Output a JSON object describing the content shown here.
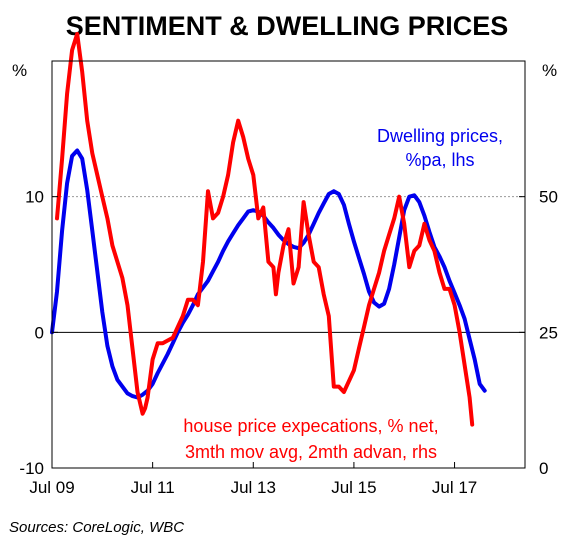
{
  "chart_data": {
    "type": "line",
    "title": "SENTIMENT & DWELLING PRICES",
    "source": "Sources: CoreLogic, WBC",
    "left_axis": {
      "unit": "%",
      "ylim": [
        -10,
        20
      ],
      "ticks": [
        "-10",
        "0",
        "10"
      ]
    },
    "right_axis": {
      "unit": "%",
      "ylim": [
        0,
        75
      ],
      "ticks": [
        "0",
        "25",
        "50"
      ]
    },
    "x_axis": {
      "range": [
        2009.5,
        2018.9
      ],
      "ticks": [
        {
          "x": 2009.5,
          "label": "Jul 09"
        },
        {
          "x": 2011.5,
          "label": "Jul 11"
        },
        {
          "x": 2013.5,
          "label": "Jul 13"
        },
        {
          "x": 2015.5,
          "label": "Jul 15"
        },
        {
          "x": 2017.5,
          "label": "Jul 17"
        }
      ]
    },
    "grid": {
      "dotted_at_left": [
        10
      ],
      "solid_at_left": [
        0
      ]
    },
    "series": [
      {
        "name": "Dwelling prices, %pa, lhs",
        "label_lines": [
          "Dwelling prices,",
          "%pa, lhs"
        ],
        "axis": "left",
        "color": "#0000ee",
        "points": [
          [
            2009.5,
            0
          ],
          [
            2009.6,
            3
          ],
          [
            2009.7,
            7.5
          ],
          [
            2009.8,
            11
          ],
          [
            2009.9,
            13
          ],
          [
            2010.0,
            13.4
          ],
          [
            2010.1,
            12.8
          ],
          [
            2010.2,
            10.5
          ],
          [
            2010.3,
            7.5
          ],
          [
            2010.4,
            4.5
          ],
          [
            2010.5,
            1.5
          ],
          [
            2010.6,
            -1
          ],
          [
            2010.7,
            -2.5
          ],
          [
            2010.8,
            -3.5
          ],
          [
            2010.9,
            -4
          ],
          [
            2011.0,
            -4.5
          ],
          [
            2011.1,
            -4.7
          ],
          [
            2011.2,
            -4.8
          ],
          [
            2011.3,
            -4.6
          ],
          [
            2011.4,
            -4.3
          ],
          [
            2011.5,
            -3.8
          ],
          [
            2011.6,
            -3
          ],
          [
            2011.7,
            -2.3
          ],
          [
            2011.8,
            -1.6
          ],
          [
            2011.9,
            -0.8
          ],
          [
            2012.0,
            0
          ],
          [
            2012.1,
            0.7
          ],
          [
            2012.2,
            1.3
          ],
          [
            2012.3,
            2
          ],
          [
            2012.4,
            2.8
          ],
          [
            2012.5,
            3.3
          ],
          [
            2012.6,
            3.8
          ],
          [
            2012.7,
            4.5
          ],
          [
            2012.8,
            5.2
          ],
          [
            2012.9,
            6
          ],
          [
            2013.0,
            6.7
          ],
          [
            2013.1,
            7.3
          ],
          [
            2013.2,
            7.9
          ],
          [
            2013.3,
            8.4
          ],
          [
            2013.4,
            8.9
          ],
          [
            2013.5,
            9
          ],
          [
            2013.6,
            8.9
          ],
          [
            2013.7,
            8.6
          ],
          [
            2013.8,
            8.1
          ],
          [
            2013.9,
            7.7
          ],
          [
            2014.0,
            7.2
          ],
          [
            2014.1,
            6.8
          ],
          [
            2014.2,
            6.5
          ],
          [
            2014.3,
            6.3
          ],
          [
            2014.4,
            6.2
          ],
          [
            2014.5,
            6.6
          ],
          [
            2014.6,
            7.2
          ],
          [
            2014.7,
            8
          ],
          [
            2014.8,
            8.8
          ],
          [
            2014.9,
            9.5
          ],
          [
            2015.0,
            10.2
          ],
          [
            2015.1,
            10.4
          ],
          [
            2015.2,
            10.2
          ],
          [
            2015.3,
            9.4
          ],
          [
            2015.4,
            8
          ],
          [
            2015.5,
            6.7
          ],
          [
            2015.6,
            5.5
          ],
          [
            2015.7,
            4.3
          ],
          [
            2015.8,
            3
          ],
          [
            2015.9,
            2.2
          ],
          [
            2016.0,
            1.9
          ],
          [
            2016.1,
            2.1
          ],
          [
            2016.2,
            3.2
          ],
          [
            2016.3,
            5
          ],
          [
            2016.4,
            7
          ],
          [
            2016.5,
            9
          ],
          [
            2016.6,
            10
          ],
          [
            2016.7,
            10.1
          ],
          [
            2016.8,
            9.6
          ],
          [
            2016.9,
            8.6
          ],
          [
            2017.0,
            7.4
          ],
          [
            2017.1,
            6.3
          ],
          [
            2017.2,
            5.6
          ],
          [
            2017.3,
            4.8
          ],
          [
            2017.4,
            3.8
          ],
          [
            2017.5,
            2.9
          ],
          [
            2017.6,
            2
          ],
          [
            2017.7,
            1
          ],
          [
            2017.8,
            -0.5
          ],
          [
            2017.9,
            -2
          ],
          [
            2018.0,
            -3.8
          ],
          [
            2018.1,
            -4.3
          ]
        ]
      },
      {
        "name": "house price expecations, % net, 3mth mov avg, 2mth advan, rhs",
        "label_lines": [
          "house price expecations, % net,",
          "3mth mov avg, 2mth advan, rhs"
        ],
        "axis": "right",
        "color": "#ff0000",
        "points": [
          [
            2009.6,
            46
          ],
          [
            2009.7,
            57
          ],
          [
            2009.8,
            69
          ],
          [
            2009.9,
            77
          ],
          [
            2010.0,
            80
          ],
          [
            2010.1,
            73
          ],
          [
            2010.2,
            64
          ],
          [
            2010.3,
            58
          ],
          [
            2010.4,
            54
          ],
          [
            2010.5,
            50
          ],
          [
            2010.6,
            46
          ],
          [
            2010.7,
            41
          ],
          [
            2010.8,
            38
          ],
          [
            2010.9,
            35
          ],
          [
            2011.0,
            30
          ],
          [
            2011.1,
            22
          ],
          [
            2011.2,
            14
          ],
          [
            2011.3,
            10
          ],
          [
            2011.35,
            11
          ],
          [
            2011.4,
            13
          ],
          [
            2011.5,
            20
          ],
          [
            2011.6,
            23
          ],
          [
            2011.7,
            23
          ],
          [
            2011.8,
            23.5
          ],
          [
            2011.9,
            24
          ],
          [
            2012.0,
            26
          ],
          [
            2012.1,
            28
          ],
          [
            2012.2,
            31
          ],
          [
            2012.3,
            31
          ],
          [
            2012.4,
            30
          ],
          [
            2012.5,
            38
          ],
          [
            2012.6,
            51
          ],
          [
            2012.7,
            46
          ],
          [
            2012.8,
            47
          ],
          [
            2012.9,
            50
          ],
          [
            2013.0,
            54
          ],
          [
            2013.1,
            60
          ],
          [
            2013.2,
            64
          ],
          [
            2013.3,
            61
          ],
          [
            2013.4,
            57
          ],
          [
            2013.5,
            54
          ],
          [
            2013.6,
            46
          ],
          [
            2013.7,
            48
          ],
          [
            2013.8,
            38
          ],
          [
            2013.9,
            37
          ],
          [
            2013.95,
            32
          ],
          [
            2014.0,
            36
          ],
          [
            2014.1,
            41
          ],
          [
            2014.2,
            44
          ],
          [
            2014.3,
            34
          ],
          [
            2014.4,
            37
          ],
          [
            2014.5,
            49
          ],
          [
            2014.6,
            43
          ],
          [
            2014.7,
            38
          ],
          [
            2014.8,
            37
          ],
          [
            2014.9,
            32
          ],
          [
            2015.0,
            28
          ],
          [
            2015.1,
            15
          ],
          [
            2015.2,
            15
          ],
          [
            2015.3,
            14
          ],
          [
            2015.4,
            16
          ],
          [
            2015.5,
            18
          ],
          [
            2015.6,
            22
          ],
          [
            2015.7,
            26
          ],
          [
            2015.8,
            30
          ],
          [
            2015.9,
            33
          ],
          [
            2016.0,
            36
          ],
          [
            2016.1,
            40
          ],
          [
            2016.2,
            43
          ],
          [
            2016.3,
            46
          ],
          [
            2016.4,
            50
          ],
          [
            2016.5,
            45
          ],
          [
            2016.6,
            37
          ],
          [
            2016.7,
            40
          ],
          [
            2016.8,
            41
          ],
          [
            2016.9,
            45
          ],
          [
            2017.0,
            42
          ],
          [
            2017.1,
            40
          ],
          [
            2017.2,
            36
          ],
          [
            2017.3,
            33
          ],
          [
            2017.4,
            33
          ],
          [
            2017.5,
            30
          ],
          [
            2017.6,
            25
          ],
          [
            2017.7,
            19
          ],
          [
            2017.8,
            13
          ],
          [
            2017.85,
            8
          ]
        ]
      }
    ]
  }
}
